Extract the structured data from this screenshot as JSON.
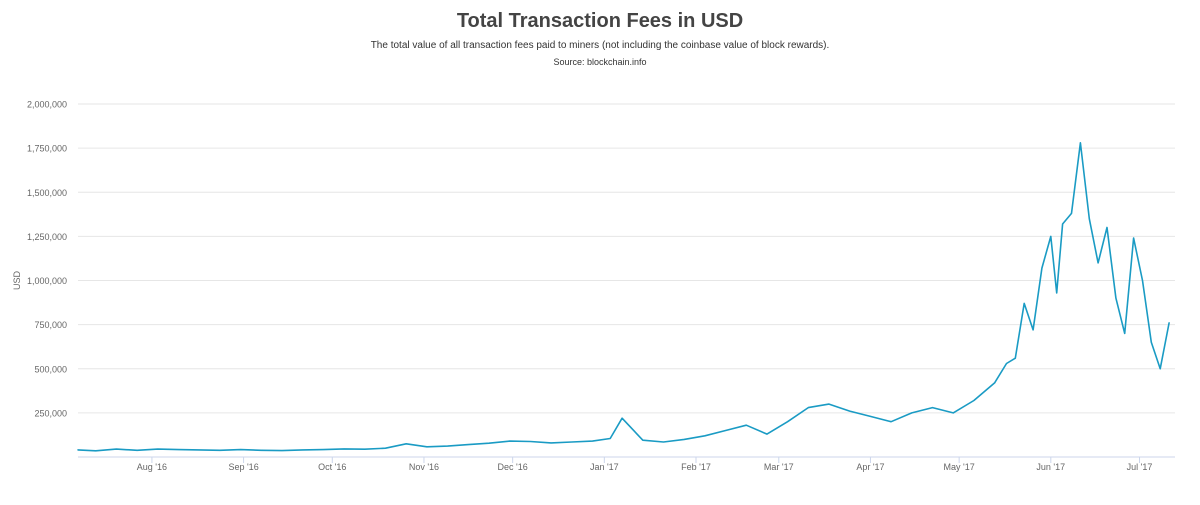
{
  "chart_data": {
    "type": "line",
    "title": "Total Transaction Fees in USD",
    "subtitle": "The total value of all transaction fees paid to miners (not including the coinbase value of block rewards).",
    "source": "Source: blockchain.info",
    "ylabel": "USD",
    "xlabel": "",
    "ylim": [
      0,
      2000000
    ],
    "y_ticks": [
      {
        "value": 250000,
        "label": "250,000"
      },
      {
        "value": 500000,
        "label": "500,000"
      },
      {
        "value": 750000,
        "label": "750,000"
      },
      {
        "value": 1000000,
        "label": "1,000,000"
      },
      {
        "value": 1250000,
        "label": "1,250,000"
      },
      {
        "value": 1500000,
        "label": "1,500,000"
      },
      {
        "value": 1750000,
        "label": "1,750,000"
      },
      {
        "value": 2000000,
        "label": "2,000,000"
      }
    ],
    "xlim": [
      "2016-07-07",
      "2017-07-13"
    ],
    "x_ticks": [
      {
        "date": "2016-08-01",
        "label": "Aug '16"
      },
      {
        "date": "2016-09-01",
        "label": "Sep '16"
      },
      {
        "date": "2016-10-01",
        "label": "Oct '16"
      },
      {
        "date": "2016-11-01",
        "label": "Nov '16"
      },
      {
        "date": "2016-12-01",
        "label": "Dec '16"
      },
      {
        "date": "2017-01-01",
        "label": "Jan '17"
      },
      {
        "date": "2017-02-01",
        "label": "Feb '17"
      },
      {
        "date": "2017-03-01",
        "label": "Mar '17"
      },
      {
        "date": "2017-04-01",
        "label": "Apr '17"
      },
      {
        "date": "2017-05-01",
        "label": "May '17"
      },
      {
        "date": "2017-06-01",
        "label": "Jun '17"
      },
      {
        "date": "2017-07-01",
        "label": "Jul '17"
      }
    ],
    "grid": true,
    "legend": "none",
    "colors": {
      "series": "#1a9bc4",
      "grid": "#e6e6e6",
      "axis": "#ccd6eb",
      "text": "#666666"
    },
    "series": [
      {
        "x": [
          "2016-07-07",
          "2016-07-13",
          "2016-07-20",
          "2016-07-27",
          "2016-08-03",
          "2016-08-10",
          "2016-08-17",
          "2016-08-24",
          "2016-08-31",
          "2016-09-07",
          "2016-09-14",
          "2016-09-21",
          "2016-09-28",
          "2016-10-05",
          "2016-10-12",
          "2016-10-19",
          "2016-10-26",
          "2016-11-02",
          "2016-11-09",
          "2016-11-16",
          "2016-11-23",
          "2016-11-30",
          "2016-12-07",
          "2016-12-14",
          "2016-12-21",
          "2016-12-28",
          "2017-01-03",
          "2017-01-07",
          "2017-01-14",
          "2017-01-21",
          "2017-01-28",
          "2017-02-04",
          "2017-02-11",
          "2017-02-18",
          "2017-02-25",
          "2017-03-04",
          "2017-03-11",
          "2017-03-18",
          "2017-03-25",
          "2017-04-01",
          "2017-04-08",
          "2017-04-15",
          "2017-04-22",
          "2017-04-29",
          "2017-05-06",
          "2017-05-13",
          "2017-05-17",
          "2017-05-20",
          "2017-05-23",
          "2017-05-26",
          "2017-05-29",
          "2017-06-01",
          "2017-06-03",
          "2017-06-05",
          "2017-06-08",
          "2017-06-11",
          "2017-06-14",
          "2017-06-17",
          "2017-06-20",
          "2017-06-23",
          "2017-06-26",
          "2017-06-29",
          "2017-07-02",
          "2017-07-05",
          "2017-07-08",
          "2017-07-11"
        ],
        "values": [
          40000,
          35000,
          45000,
          38000,
          45000,
          42000,
          40000,
          38000,
          42000,
          38000,
          36000,
          40000,
          42000,
          46000,
          44000,
          50000,
          75000,
          58000,
          62000,
          70000,
          78000,
          90000,
          88000,
          80000,
          85000,
          90000,
          105000,
          220000,
          95000,
          85000,
          100000,
          120000,
          150000,
          180000,
          130000,
          200000,
          280000,
          300000,
          260000,
          230000,
          200000,
          250000,
          280000,
          250000,
          320000,
          420000,
          530000,
          560000,
          870000,
          720000,
          1070000,
          1250000,
          930000,
          1320000,
          1380000,
          1780000,
          1350000,
          1100000,
          1300000,
          900000,
          700000,
          1240000,
          1000000,
          650000,
          500000,
          760000
        ]
      }
    ]
  }
}
